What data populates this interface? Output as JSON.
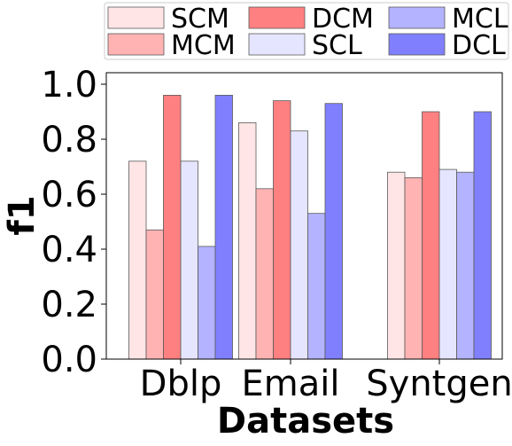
{
  "chart_data": {
    "type": "bar",
    "title": "",
    "xlabel": "Datasets",
    "ylabel": "f1",
    "ylim": [
      0,
      1.0
    ],
    "yticks": [
      "0.0",
      "0.2",
      "0.4",
      "0.6",
      "0.8",
      "1.0"
    ],
    "categories": [
      "Dblp",
      "Email",
      "Syntgen"
    ],
    "grid": false,
    "legend_position": "top",
    "series": [
      {
        "name": "SCM",
        "color": "#ffe5e5",
        "values": [
          0.72,
          0.86,
          0.68
        ]
      },
      {
        "name": "MCM",
        "color": "#ffb3b3",
        "values": [
          0.47,
          0.62,
          0.66
        ]
      },
      {
        "name": "DCM",
        "color": "#ff8080",
        "values": [
          0.96,
          0.94,
          0.9
        ]
      },
      {
        "name": "SCL",
        "color": "#e5e5ff",
        "values": [
          0.72,
          0.83,
          0.69
        ]
      },
      {
        "name": "MCL",
        "color": "#b3b3ff",
        "values": [
          0.41,
          0.53,
          0.68
        ]
      },
      {
        "name": "DCL",
        "color": "#8080ff",
        "values": [
          0.96,
          0.93,
          0.9
        ]
      }
    ]
  }
}
